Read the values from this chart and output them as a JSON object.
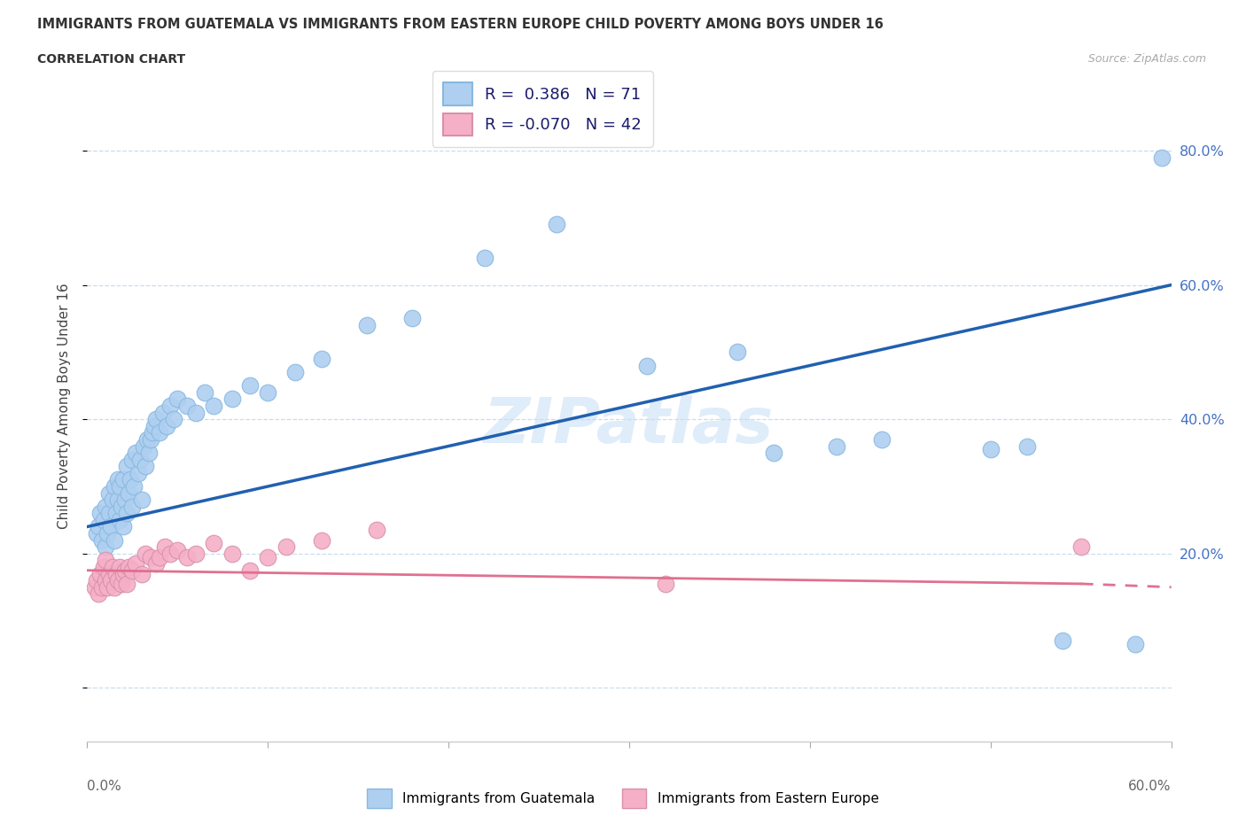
{
  "title": "IMMIGRANTS FROM GUATEMALA VS IMMIGRANTS FROM EASTERN EUROPE CHILD POVERTY AMONG BOYS UNDER 16",
  "subtitle": "CORRELATION CHART",
  "source": "Source: ZipAtlas.com",
  "ylabel": "Child Poverty Among Boys Under 16",
  "xlim": [
    0.0,
    0.6
  ],
  "ylim": [
    -0.08,
    0.92
  ],
  "yticks": [
    0.0,
    0.2,
    0.4,
    0.6,
    0.8
  ],
  "ytick_labels": [
    "",
    "20.0%",
    "40.0%",
    "60.0%",
    "80.0%"
  ],
  "blue_R": 0.386,
  "blue_N": 71,
  "pink_R": -0.07,
  "pink_N": 42,
  "blue_color": "#aecff0",
  "pink_color": "#f5b0c8",
  "blue_line_color": "#2060b0",
  "pink_line_color": "#e07090",
  "legend_label_blue": "Immigrants from Guatemala",
  "legend_label_pink": "Immigrants from Eastern Europe",
  "blue_line_x0": 0.0,
  "blue_line_y0": 0.24,
  "blue_line_x1": 0.6,
  "blue_line_y1": 0.6,
  "pink_line_x0": 0.0,
  "pink_line_y0": 0.175,
  "pink_line_x1_solid": 0.55,
  "pink_line_y1_solid": 0.155,
  "pink_line_x1_dash": 0.6,
  "pink_line_y1_dash": 0.15,
  "blue_dots_x": [
    0.005,
    0.006,
    0.007,
    0.008,
    0.009,
    0.01,
    0.01,
    0.011,
    0.012,
    0.012,
    0.013,
    0.014,
    0.015,
    0.015,
    0.016,
    0.017,
    0.017,
    0.018,
    0.018,
    0.019,
    0.02,
    0.02,
    0.021,
    0.022,
    0.022,
    0.023,
    0.024,
    0.025,
    0.025,
    0.026,
    0.027,
    0.028,
    0.029,
    0.03,
    0.031,
    0.032,
    0.033,
    0.034,
    0.035,
    0.036,
    0.037,
    0.038,
    0.04,
    0.042,
    0.044,
    0.046,
    0.048,
    0.05,
    0.055,
    0.06,
    0.065,
    0.07,
    0.08,
    0.09,
    0.1,
    0.115,
    0.13,
    0.155,
    0.18,
    0.22,
    0.26,
    0.31,
    0.36,
    0.38,
    0.415,
    0.44,
    0.5,
    0.52,
    0.54,
    0.58,
    0.595
  ],
  "blue_dots_y": [
    0.23,
    0.24,
    0.26,
    0.22,
    0.25,
    0.21,
    0.27,
    0.23,
    0.26,
    0.29,
    0.24,
    0.28,
    0.22,
    0.3,
    0.26,
    0.28,
    0.31,
    0.25,
    0.3,
    0.27,
    0.24,
    0.31,
    0.28,
    0.26,
    0.33,
    0.29,
    0.31,
    0.27,
    0.34,
    0.3,
    0.35,
    0.32,
    0.34,
    0.28,
    0.36,
    0.33,
    0.37,
    0.35,
    0.37,
    0.38,
    0.39,
    0.4,
    0.38,
    0.41,
    0.39,
    0.42,
    0.4,
    0.43,
    0.42,
    0.41,
    0.44,
    0.42,
    0.43,
    0.45,
    0.44,
    0.47,
    0.49,
    0.54,
    0.55,
    0.64,
    0.69,
    0.48,
    0.5,
    0.35,
    0.36,
    0.37,
    0.355,
    0.36,
    0.07,
    0.065,
    0.79
  ],
  "pink_dots_x": [
    0.004,
    0.005,
    0.006,
    0.007,
    0.008,
    0.009,
    0.01,
    0.01,
    0.011,
    0.012,
    0.013,
    0.014,
    0.015,
    0.016,
    0.017,
    0.018,
    0.019,
    0.02,
    0.021,
    0.022,
    0.023,
    0.025,
    0.027,
    0.03,
    0.032,
    0.035,
    0.038,
    0.04,
    0.043,
    0.046,
    0.05,
    0.055,
    0.06,
    0.07,
    0.08,
    0.09,
    0.1,
    0.11,
    0.13,
    0.16,
    0.32,
    0.55
  ],
  "pink_dots_y": [
    0.15,
    0.16,
    0.14,
    0.17,
    0.15,
    0.18,
    0.16,
    0.19,
    0.15,
    0.17,
    0.16,
    0.18,
    0.15,
    0.17,
    0.16,
    0.18,
    0.155,
    0.17,
    0.175,
    0.155,
    0.18,
    0.175,
    0.185,
    0.17,
    0.2,
    0.195,
    0.185,
    0.195,
    0.21,
    0.2,
    0.205,
    0.195,
    0.2,
    0.215,
    0.2,
    0.175,
    0.195,
    0.21,
    0.22,
    0.235,
    0.155,
    0.21
  ]
}
